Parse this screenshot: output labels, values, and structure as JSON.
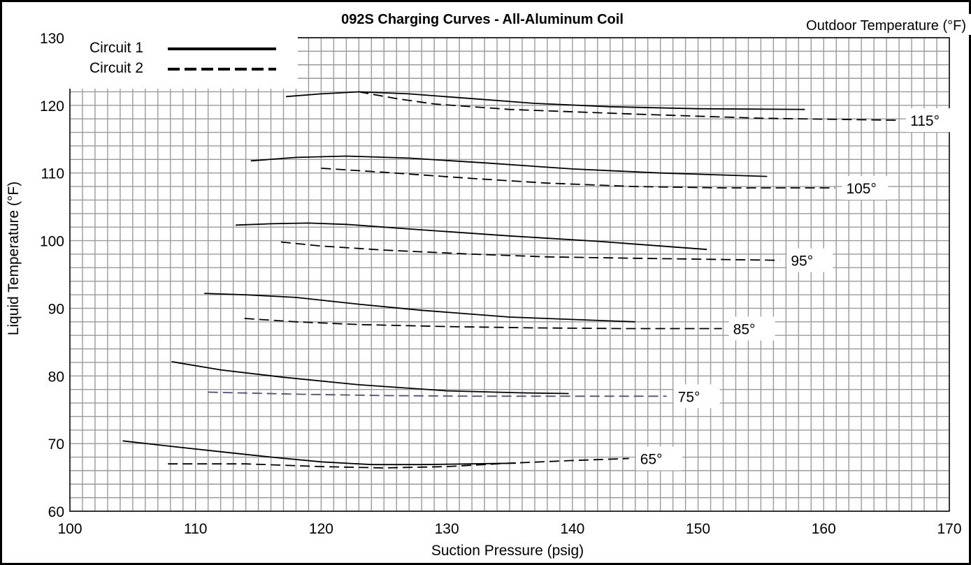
{
  "chart_data": {
    "type": "line",
    "title": "092S Charging Curves - All-Aluminum Coil",
    "xlabel": "Suction Pressure (psig)",
    "ylabel": "Liquid Temperature (°F)",
    "legend_title": "Outdoor Temperature (°F)",
    "legend": [
      {
        "name": "Circuit 1",
        "style": "solid"
      },
      {
        "name": "Circuit 2",
        "style": "dashed"
      }
    ],
    "xlim": [
      100,
      170
    ],
    "ylim": [
      60,
      130
    ],
    "x_ticks": [
      "100",
      "110",
      "120",
      "130",
      "140",
      "150",
      "160",
      "170"
    ],
    "y_ticks": [
      "60",
      "70",
      "80",
      "90",
      "100",
      "110",
      "120",
      "130"
    ],
    "grid": true,
    "curves": [
      {
        "outdoor_temp": "115°",
        "circuit1": [
          [
            117.2,
            121.3
          ],
          [
            120,
            121.7
          ],
          [
            123,
            122
          ],
          [
            127,
            121.7
          ],
          [
            132,
            121
          ],
          [
            137,
            120.3
          ],
          [
            143,
            119.8
          ],
          [
            150,
            119.5
          ],
          [
            158.5,
            119.4
          ]
        ],
        "circuit2": [
          [
            123,
            122
          ],
          [
            126,
            121
          ],
          [
            129,
            120.2
          ],
          [
            135,
            119.4
          ],
          [
            145,
            118.7
          ],
          [
            155,
            118.1
          ],
          [
            166,
            117.8
          ]
        ]
      },
      {
        "outdoor_temp": "105°",
        "circuit1": [
          [
            114.4,
            111.8
          ],
          [
            118,
            112.3
          ],
          [
            122,
            112.5
          ],
          [
            127,
            112.2
          ],
          [
            133,
            111.5
          ],
          [
            140,
            110.6
          ],
          [
            147,
            110
          ],
          [
            155.5,
            109.5
          ]
        ],
        "circuit2": [
          [
            120,
            110.7
          ],
          [
            125,
            110.1
          ],
          [
            132,
            109.2
          ],
          [
            138,
            108.5
          ],
          [
            145,
            108
          ],
          [
            152,
            107.8
          ],
          [
            160.9,
            107.8
          ]
        ]
      },
      {
        "outdoor_temp": "95°",
        "circuit1": [
          [
            113.2,
            102.3
          ],
          [
            116,
            102.5
          ],
          [
            119,
            102.6
          ],
          [
            122,
            102.4
          ],
          [
            128,
            101.6
          ],
          [
            135,
            100.7
          ],
          [
            142,
            99.9
          ],
          [
            150.7,
            98.7
          ]
        ],
        "circuit2": [
          [
            116.8,
            99.8
          ],
          [
            120,
            99.2
          ],
          [
            125,
            98.6
          ],
          [
            132,
            98
          ],
          [
            138,
            97.6
          ],
          [
            145,
            97.4
          ],
          [
            156.5,
            97.1
          ]
        ]
      },
      {
        "outdoor_temp": "85°",
        "circuit1": [
          [
            110.7,
            92.2
          ],
          [
            114,
            92
          ],
          [
            118,
            91.6
          ],
          [
            123,
            90.6
          ],
          [
            128,
            89.7
          ],
          [
            135,
            88.7
          ],
          [
            145,
            88
          ]
        ],
        "circuit2": [
          [
            113.9,
            88.5
          ],
          [
            118,
            88
          ],
          [
            123,
            87.6
          ],
          [
            130,
            87.3
          ],
          [
            137,
            87.1
          ],
          [
            144,
            87
          ],
          [
            151.9,
            87
          ]
        ]
      },
      {
        "outdoor_temp": "75°",
        "circuit1": [
          [
            108.1,
            82.1
          ],
          [
            112,
            80.9
          ],
          [
            117,
            79.8
          ],
          [
            123,
            78.7
          ],
          [
            130,
            77.8
          ],
          [
            136,
            77.5
          ],
          [
            139.7,
            77.4
          ]
        ],
        "circuit2": [
          [
            111,
            77.6
          ],
          [
            118,
            77.3
          ],
          [
            125,
            77.1
          ],
          [
            132,
            77
          ],
          [
            140,
            77
          ],
          [
            147.5,
            77
          ]
        ]
      },
      {
        "outdoor_temp": "65°",
        "circuit1": [
          [
            104.2,
            70.4
          ],
          [
            108,
            69.6
          ],
          [
            112,
            68.8
          ],
          [
            116,
            68
          ],
          [
            120,
            67.3
          ],
          [
            124,
            66.9
          ],
          [
            128,
            66.9
          ],
          [
            132,
            67
          ],
          [
            135.5,
            67.1
          ]
        ],
        "circuit2": [
          [
            107.8,
            67
          ],
          [
            114,
            67
          ],
          [
            120,
            66.6
          ],
          [
            125,
            66.4
          ],
          [
            130,
            66.6
          ],
          [
            135,
            67.1
          ],
          [
            140,
            67.5
          ],
          [
            144.5,
            67.8
          ]
        ]
      }
    ]
  }
}
